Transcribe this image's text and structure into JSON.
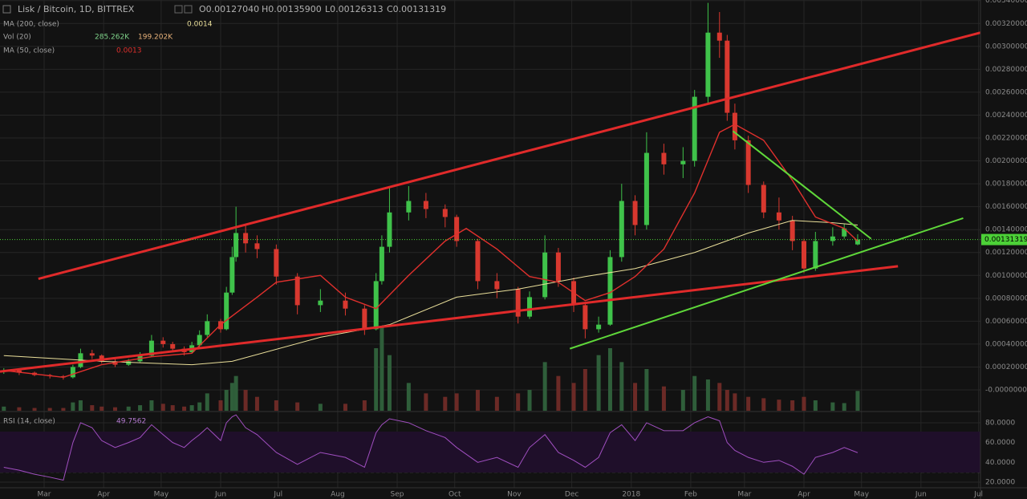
{
  "chart_data": {
    "type": "candlestick",
    "title": "Lisk / Bitcoin, 1D, BITTREX",
    "ohlc_labels": [
      "O0.00127040",
      "H0.00135900",
      "L0.00126313",
      "C0.00131319"
    ],
    "up_color": "#3fc24a",
    "down_color": "#d8382f",
    "x": [
      0,
      8,
      16,
      24,
      31,
      36,
      40,
      46,
      51,
      58,
      65,
      71,
      77,
      83,
      88,
      94,
      98,
      102,
      106,
      113,
      116,
      119,
      121,
      126,
      132,
      142,
      153,
      165,
      178,
      188,
      194,
      197,
      201,
      211,
      220,
      230,
      236,
      247,
      257,
      268,
      274,
      282,
      289,
      297,
      303,
      310,
      316,
      322,
      329,
      335,
      344,
      354,
      360,
      367,
      373,
      377,
      381,
      388,
      396,
      404,
      411,
      417,
      423,
      432,
      438,
      445
    ],
    "open": [
      0.00016,
      0.00017,
      0.00015,
      0.00013,
      0.00012,
      0.00011,
      0.0002,
      0.00032,
      0.0003,
      0.00025,
      0.00022,
      0.00025,
      0.0003,
      0.00043,
      0.0004,
      0.00036,
      0.00033,
      0.00039,
      0.00048,
      0.0006,
      0.00053,
      0.00085,
      0.00116,
      0.00137,
      0.00128,
      0.00123,
      0.00099,
      0.00074,
      0.00078,
      0.00071,
      0.00053,
      0.00095,
      0.00125,
      0.00155,
      0.00165,
      0.00158,
      0.00151,
      0.0013,
      0.00095,
      0.00088,
      0.00064,
      0.00081,
      0.0012,
      0.00095,
      0.00074,
      0.00053,
      0.00057,
      0.00116,
      0.00165,
      0.00144,
      0.00207,
      0.00197,
      0.002,
      0.00256,
      0.00312,
      0.00305,
      0.00242,
      0.00218,
      0.00179,
      0.00155,
      0.00148,
      0.0013,
      0.00106,
      0.0013,
      0.00134,
      0.0012704
    ],
    "high": [
      0.00019,
      0.00018,
      0.00016,
      0.00014,
      0.00013,
      0.00022,
      0.00036,
      0.00035,
      0.00031,
      0.00027,
      0.00027,
      0.00033,
      0.00048,
      0.00046,
      0.00042,
      0.00038,
      0.00042,
      0.00052,
      0.00066,
      0.00062,
      0.0009,
      0.00125,
      0.0016,
      0.00145,
      0.00135,
      0.00127,
      0.00102,
      0.00088,
      0.00085,
      0.00074,
      0.00102,
      0.00135,
      0.00178,
      0.00178,
      0.00172,
      0.00162,
      0.00153,
      0.00132,
      0.00102,
      0.0009,
      0.00086,
      0.00135,
      0.00124,
      0.00098,
      0.00076,
      0.00064,
      0.00122,
      0.0018,
      0.0017,
      0.00225,
      0.00215,
      0.00212,
      0.00262,
      0.00338,
      0.0033,
      0.0031,
      0.0025,
      0.00222,
      0.00182,
      0.00168,
      0.00152,
      0.00132,
      0.00138,
      0.00142,
      0.00145,
      0.001359
    ],
    "low": [
      0.00014,
      0.00013,
      0.00012,
      0.0001,
      9e-05,
      0.0001,
      0.00019,
      0.00027,
      0.00023,
      0.0002,
      0.00021,
      0.00024,
      0.00029,
      0.00037,
      0.00033,
      0.0003,
      0.00032,
      0.00037,
      0.00046,
      0.0005,
      0.00052,
      0.00083,
      0.00112,
      0.0012,
      0.00115,
      0.00092,
      0.00066,
      0.00068,
      0.00065,
      0.00048,
      0.00052,
      0.00092,
      0.0012,
      0.00148,
      0.0015,
      0.00142,
      0.00125,
      0.00088,
      0.0008,
      0.00058,
      0.00062,
      0.00079,
      0.0009,
      0.00068,
      0.00045,
      0.0005,
      0.00056,
      0.00112,
      0.00135,
      0.0014,
      0.00188,
      0.00185,
      0.00195,
      0.0025,
      0.0029,
      0.00235,
      0.0021,
      0.00172,
      0.0015,
      0.0014,
      0.00122,
      0.00102,
      0.00104,
      0.00126,
      0.00132,
      0.00126313
    ],
    "close": [
      0.00017,
      0.00015,
      0.00013,
      0.00012,
      0.00011,
      0.0002,
      0.00032,
      0.0003,
      0.00025,
      0.00022,
      0.00025,
      0.0003,
      0.00043,
      0.0004,
      0.00036,
      0.00033,
      0.00039,
      0.00048,
      0.0006,
      0.00053,
      0.00085,
      0.00116,
      0.00137,
      0.00128,
      0.00123,
      0.00099,
      0.00074,
      0.00078,
      0.00071,
      0.00053,
      0.00095,
      0.00125,
      0.00155,
      0.00165,
      0.00158,
      0.00151,
      0.0013,
      0.00095,
      0.00088,
      0.00064,
      0.00081,
      0.0012,
      0.00095,
      0.00074,
      0.00053,
      0.00057,
      0.00116,
      0.00165,
      0.00144,
      0.00207,
      0.00197,
      0.002,
      0.00256,
      0.00312,
      0.00305,
      0.00242,
      0.00218,
      0.00179,
      0.00155,
      0.00148,
      0.0013,
      0.00106,
      0.0013,
      0.00134,
      0.00141,
      0.00131319
    ],
    "xlim": [
      -2,
      509
    ],
    "xticks": [
      {
        "value": 21,
        "label": "Mar"
      },
      {
        "value": 52,
        "label": "Apr"
      },
      {
        "value": 82,
        "label": "May"
      },
      {
        "value": 113,
        "label": "Jun"
      },
      {
        "value": 143,
        "label": "Jul"
      },
      {
        "value": 174,
        "label": "Aug"
      },
      {
        "value": 205,
        "label": "Sep"
      },
      {
        "value": 235,
        "label": "Oct"
      },
      {
        "value": 266,
        "label": "Nov"
      },
      {
        "value": 296,
        "label": "Dec"
      },
      {
        "value": 327,
        "label": "2018"
      },
      {
        "value": 358,
        "label": "Feb"
      },
      {
        "value": 386,
        "label": "Mar"
      },
      {
        "value": 417,
        "label": "Apr"
      },
      {
        "value": 447,
        "label": "May"
      },
      {
        "value": 478,
        "label": "Jun"
      },
      {
        "value": 508,
        "label": "Jul"
      }
    ],
    "ylim": [
      -0.000182,
      0.003405
    ],
    "yticks": [
      {
        "value": 0,
        "label": "-0.00000000"
      },
      {
        "value": 0.0002,
        "label": "0.00020000"
      },
      {
        "value": 0.0004,
        "label": "0.00040000"
      },
      {
        "value": 0.0006,
        "label": "0.00060000"
      },
      {
        "value": 0.0008,
        "label": "0.00080000"
      },
      {
        "value": 0.001,
        "label": "0.00100000"
      },
      {
        "value": 0.0012,
        "label": "0.00120000"
      },
      {
        "value": 0.0014,
        "label": "0.00140000"
      },
      {
        "value": 0.0016,
        "label": "0.00160000"
      },
      {
        "value": 0.0018,
        "label": "0.00180000"
      },
      {
        "value": 0.002,
        "label": "0.00200000"
      },
      {
        "value": 0.0022,
        "label": "0.00220000"
      },
      {
        "value": 0.0024,
        "label": "0.00240000"
      },
      {
        "value": 0.0026,
        "label": "0.00260000"
      },
      {
        "value": 0.0028,
        "label": "0.00280000"
      },
      {
        "value": 0.003,
        "label": "0.00300000"
      },
      {
        "value": 0.0032,
        "label": "0.00320000"
      },
      {
        "value": 0.0034,
        "label": "0.00340000"
      }
    ],
    "grid": true,
    "last_price": {
      "value": 0.00131319,
      "label": "0.00131319",
      "color": "#4cd137"
    },
    "indicators": [
      {
        "name": "MA (200, close)",
        "value_text": "0.0014",
        "color": "#eadf9a",
        "x": [
          0,
          51,
          98,
          119,
          165,
          201,
          236,
          268,
          303,
          329,
          360,
          388,
          411,
          432,
          445
        ],
        "values": [
          0.0003,
          0.00025,
          0.00022,
          0.00025,
          0.00046,
          0.00057,
          0.00081,
          0.00088,
          0.00099,
          0.00106,
          0.0012,
          0.00137,
          0.00148,
          0.00146,
          0.00144
        ]
      },
      {
        "name": "MA (50, close)",
        "value_text": "0.0013",
        "color": "#e0302d",
        "x": [
          0,
          31,
          51,
          77,
          98,
          113,
          132,
          142,
          165,
          178,
          194,
          211,
          230,
          241,
          257,
          274,
          289,
          303,
          316,
          329,
          344,
          360,
          373,
          381,
          396,
          411,
          423,
          438,
          445
        ],
        "values": [
          0.00017,
          0.00011,
          0.00022,
          0.00029,
          0.00032,
          0.00057,
          0.00081,
          0.00094,
          0.001,
          0.00081,
          0.00071,
          0.001,
          0.0013,
          0.00141,
          0.00123,
          0.00099,
          0.00094,
          0.00078,
          0.00085,
          0.00099,
          0.00123,
          0.00172,
          0.00225,
          0.00232,
          0.00218,
          0.00183,
          0.00151,
          0.00141,
          0.0013
        ]
      }
    ],
    "volume": {
      "name": "Vol (20)",
      "value_text": "285.262K",
      "ma_text": "199.202K",
      "ylim": [
        0,
        1500
      ],
      "values": [
        60,
        50,
        40,
        40,
        40,
        120,
        150,
        80,
        60,
        50,
        60,
        80,
        150,
        100,
        80,
        60,
        80,
        120,
        250,
        150,
        300,
        400,
        500,
        300,
        200,
        150,
        120,
        100,
        100,
        150,
        900,
        1200,
        800,
        400,
        250,
        200,
        250,
        300,
        200,
        250,
        300,
        700,
        500,
        400,
        600,
        800,
        900,
        700,
        400,
        600,
        350,
        300,
        500,
        450,
        400,
        300,
        250,
        200,
        180,
        160,
        150,
        200,
        150,
        120,
        110,
        285.262
      ]
    },
    "rsi": {
      "name": "RSI (14, close)",
      "value_text": "49.7562",
      "color": "#a04fc0",
      "ylim": [
        14.3,
        89.7
      ],
      "band": [
        30,
        70
      ],
      "yticks": [
        {
          "value": 20,
          "label": "20.0000"
        },
        {
          "value": 40,
          "label": "40.0000"
        },
        {
          "value": 60,
          "label": "60.0000"
        },
        {
          "value": 80,
          "label": "80.0000"
        }
      ],
      "values": [
        35,
        32,
        28,
        25,
        22,
        60,
        80,
        75,
        62,
        55,
        60,
        65,
        78,
        68,
        60,
        55,
        62,
        68,
        75,
        62,
        80,
        86,
        88,
        75,
        68,
        50,
        38,
        50,
        45,
        35,
        70,
        78,
        84,
        80,
        72,
        65,
        55,
        40,
        45,
        35,
        55,
        68,
        50,
        42,
        35,
        45,
        70,
        78,
        62,
        80,
        72,
        72,
        80,
        86,
        82,
        60,
        52,
        45,
        40,
        42,
        36,
        28,
        45,
        50,
        55,
        49.7562
      ]
    },
    "trendlines": [
      {
        "color": "#e02a2a",
        "x": [
          18,
          509
        ],
        "values": [
          0.00097,
          0.00312
        ]
      },
      {
        "color": "#e02a2a",
        "x": [
          -2,
          466
        ],
        "values": [
          0.00016,
          0.00108
        ]
      },
      {
        "color": "#5fd83a",
        "x": [
          295,
          500
        ],
        "values": [
          0.00036,
          0.0015
        ]
      },
      {
        "color": "#5fd83a",
        "x": [
          380,
          452
        ],
        "values": [
          0.00226,
          0.00132
        ]
      }
    ]
  }
}
